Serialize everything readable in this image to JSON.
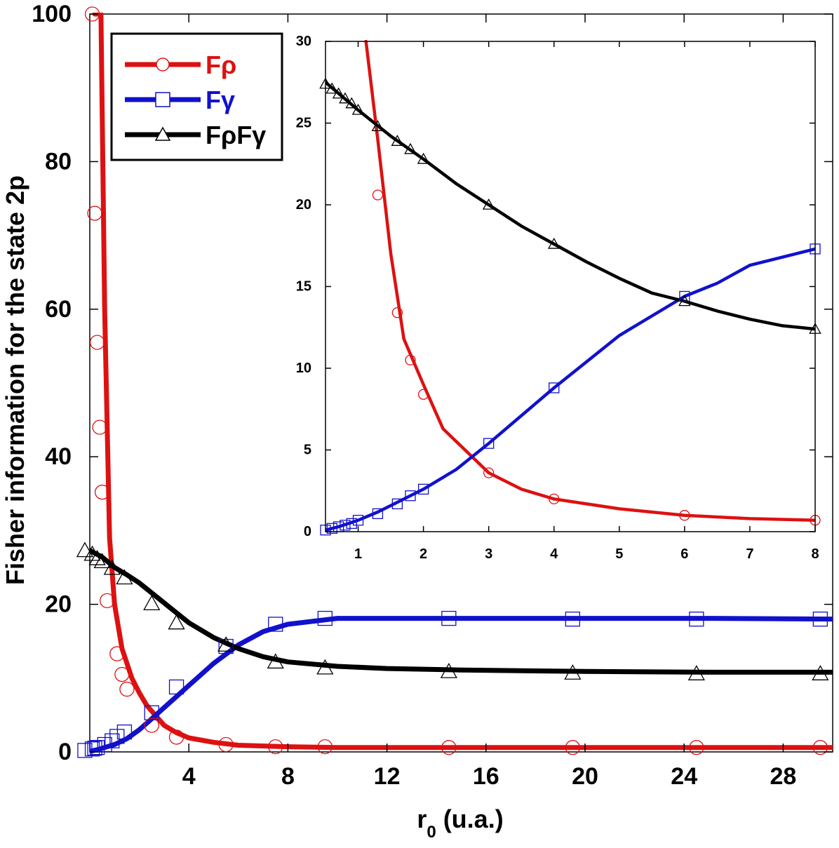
{
  "chart_data": [
    {
      "id": "main",
      "type": "line",
      "xlabel": "r",
      "xlabel_sub": "0",
      "xlabel_units": " (u.a.)",
      "ylabel": "Fisher information for the state 2p",
      "xlim": [
        0,
        30
      ],
      "ylim": [
        0,
        100
      ],
      "xticks": [
        "4",
        "8",
        "12",
        "16",
        "20",
        "24",
        "28"
      ],
      "yticks": [
        "0",
        "20",
        "40",
        "60",
        "80",
        "100"
      ],
      "xtick_values": [
        4,
        8,
        12,
        16,
        20,
        24,
        28
      ],
      "ytick_values": [
        0,
        20,
        40,
        60,
        80,
        100
      ],
      "series": [
        {
          "name": "Fρ",
          "color": "#dd1111",
          "marker": "circle",
          "line": [
            [
              0.2,
              100
            ],
            [
              0.45,
              100
            ],
            [
              0.6,
              60
            ],
            [
              0.8,
              29
            ],
            [
              1.0,
              20
            ],
            [
              1.3,
              14
            ],
            [
              1.7,
              10
            ],
            [
              2.0,
              8
            ],
            [
              2.3,
              6.3
            ],
            [
              3.0,
              3.6
            ],
            [
              3.5,
              2.6
            ],
            [
              4.0,
              1.9
            ],
            [
              5,
              1.3
            ],
            [
              6,
              0.9
            ],
            [
              8,
              0.7
            ],
            [
              10,
              0.6
            ],
            [
              15,
              0.6
            ],
            [
              20,
              0.6
            ],
            [
              25,
              0.6
            ],
            [
              30,
              0.6
            ]
          ],
          "markers": [
            [
              0.1,
              100
            ],
            [
              0.2,
              73
            ],
            [
              0.3,
              55.5
            ],
            [
              0.4,
              44
            ],
            [
              0.5,
              35.2
            ],
            [
              0.7,
              20.5
            ],
            [
              1.1,
              13.3
            ],
            [
              1.3,
              10.5
            ],
            [
              1.5,
              8.5
            ],
            [
              2.5,
              3.6
            ],
            [
              3.5,
              2.0
            ],
            [
              5.5,
              1.0
            ],
            [
              7.5,
              0.7
            ],
            [
              9.5,
              0.7
            ],
            [
              14.5,
              0.6
            ],
            [
              19.5,
              0.6
            ],
            [
              24.5,
              0.6
            ],
            [
              29.5,
              0.6
            ]
          ]
        },
        {
          "name": "Fγ",
          "color": "#1111cc",
          "marker": "square",
          "line": [
            [
              -0.1,
              0.0
            ],
            [
              0.3,
              0.3
            ],
            [
              0.6,
              0.6
            ],
            [
              1.0,
              1.0
            ],
            [
              1.5,
              1.8
            ],
            [
              2.0,
              3.0
            ],
            [
              2.5,
              4.5
            ],
            [
              3.0,
              6.0
            ],
            [
              4.0,
              9.0
            ],
            [
              5.0,
              12.0
            ],
            [
              6.0,
              14.5
            ],
            [
              7.0,
              16.3
            ],
            [
              8.0,
              17.3
            ],
            [
              10.0,
              18.1
            ],
            [
              15.0,
              18.1
            ],
            [
              20.0,
              18.1
            ],
            [
              25.0,
              18.1
            ],
            [
              30.0,
              18.0
            ]
          ],
          "markers": [
            [
              -0.2,
              0.2
            ],
            [
              0.1,
              0.4
            ],
            [
              0.2,
              0.5
            ],
            [
              0.3,
              0.6
            ],
            [
              0.6,
              1.0
            ],
            [
              0.9,
              1.5
            ],
            [
              1.1,
              2.1
            ],
            [
              1.4,
              2.7
            ],
            [
              2.5,
              5.3
            ],
            [
              3.5,
              8.8
            ],
            [
              5.5,
              14.3
            ],
            [
              7.5,
              17.3
            ],
            [
              9.5,
              18.1
            ],
            [
              14.5,
              18.1
            ],
            [
              19.5,
              18.0
            ],
            [
              24.5,
              18.0
            ],
            [
              29.5,
              18.0
            ]
          ]
        },
        {
          "name": "FρFγ",
          "color": "#000000",
          "marker": "triangle",
          "line": [
            [
              0.0,
              27.3
            ],
            [
              0.5,
              26.4
            ],
            [
              1.0,
              25.0
            ],
            [
              1.5,
              24.0
            ],
            [
              2.0,
              22.9
            ],
            [
              3.0,
              20.2
            ],
            [
              4.0,
              17.5
            ],
            [
              5.0,
              15.5
            ],
            [
              6.0,
              14.0
            ],
            [
              7.0,
              12.9
            ],
            [
              8.0,
              12.2
            ],
            [
              10.0,
              11.6
            ],
            [
              12.0,
              11.3
            ],
            [
              15.0,
              11.1
            ],
            [
              20.0,
              10.9
            ],
            [
              25.0,
              10.8
            ],
            [
              30.0,
              10.8
            ]
          ],
          "markers": [
            [
              -0.2,
              27.3
            ],
            [
              0.1,
              26.8
            ],
            [
              0.3,
              26.2
            ],
            [
              0.5,
              25.8
            ],
            [
              0.9,
              24.9
            ],
            [
              1.4,
              23.6
            ],
            [
              2.5,
              20.1
            ],
            [
              3.5,
              17.5
            ],
            [
              5.5,
              14.5
            ],
            [
              7.5,
              12.2
            ],
            [
              9.5,
              11.4
            ],
            [
              14.5,
              10.9
            ],
            [
              19.5,
              10.7
            ],
            [
              24.5,
              10.6
            ],
            [
              29.5,
              10.6
            ]
          ]
        }
      ],
      "legend": {
        "position": "top-left",
        "entries": [
          "Fρ",
          "Fγ",
          "FρFγ"
        ]
      }
    },
    {
      "id": "inset",
      "type": "line",
      "position": "top-right",
      "xlim": [
        0.5,
        8
      ],
      "ylim": [
        0,
        30
      ],
      "xticks": [
        "1",
        "2",
        "3",
        "4",
        "5",
        "6",
        "7",
        "8"
      ],
      "yticks": [
        "0",
        "5",
        "10",
        "15",
        "20",
        "25",
        "30"
      ],
      "xtick_values": [
        1,
        2,
        3,
        4,
        5,
        6,
        7,
        8
      ],
      "ytick_values": [
        0,
        5,
        10,
        15,
        20,
        25,
        30
      ],
      "series": [
        {
          "name": "Fρ",
          "color": "#dd1111",
          "marker": "circle",
          "line": [
            [
              1.12,
              30
            ],
            [
              1.15,
              29
            ],
            [
              1.3,
              24
            ],
            [
              1.5,
              17
            ],
            [
              1.7,
              11.8
            ],
            [
              2.0,
              9.0
            ],
            [
              2.3,
              6.3
            ],
            [
              3.0,
              3.6
            ],
            [
              3.5,
              2.6
            ],
            [
              4.0,
              2.0
            ],
            [
              5.0,
              1.4
            ],
            [
              6.0,
              1.0
            ],
            [
              7.0,
              0.8
            ],
            [
              8.0,
              0.7
            ]
          ],
          "markers": [
            [
              1.3,
              20.6
            ],
            [
              1.6,
              13.4
            ],
            [
              1.8,
              10.5
            ],
            [
              2.0,
              8.4
            ],
            [
              3.0,
              3.6
            ],
            [
              4.0,
              2.0
            ],
            [
              6.0,
              1.0
            ],
            [
              8.0,
              0.7
            ]
          ]
        },
        {
          "name": "Fγ",
          "color": "#1111cc",
          "marker": "square",
          "line": [
            [
              0.5,
              0.1
            ],
            [
              0.7,
              0.3
            ],
            [
              1.0,
              0.7
            ],
            [
              1.3,
              1.2
            ],
            [
              1.6,
              1.8
            ],
            [
              2.0,
              2.6
            ],
            [
              2.5,
              3.8
            ],
            [
              3.0,
              5.4
            ],
            [
              4.0,
              8.8
            ],
            [
              5.0,
              12.0
            ],
            [
              6.0,
              14.4
            ],
            [
              6.5,
              15.2
            ],
            [
              7.0,
              16.3
            ],
            [
              7.5,
              16.8
            ],
            [
              8.0,
              17.3
            ]
          ],
          "markers": [
            [
              0.5,
              0.1
            ],
            [
              0.6,
              0.2
            ],
            [
              0.7,
              0.3
            ],
            [
              0.8,
              0.4
            ],
            [
              0.9,
              0.5
            ],
            [
              1.0,
              0.7
            ],
            [
              1.3,
              1.1
            ],
            [
              1.6,
              1.7
            ],
            [
              1.8,
              2.2
            ],
            [
              2.0,
              2.6
            ],
            [
              3.0,
              5.4
            ],
            [
              4.0,
              8.8
            ],
            [
              6.0,
              14.4
            ],
            [
              8.0,
              17.3
            ]
          ]
        },
        {
          "name": "FρFγ",
          "color": "#000000",
          "marker": "triangle",
          "line": [
            [
              0.5,
              27.5
            ],
            [
              1.0,
              25.8
            ],
            [
              1.5,
              24.2
            ],
            [
              2.0,
              22.8
            ],
            [
              2.5,
              21.3
            ],
            [
              3.0,
              20.0
            ],
            [
              3.5,
              18.7
            ],
            [
              4.0,
              17.6
            ],
            [
              4.5,
              16.5
            ],
            [
              5.0,
              15.5
            ],
            [
              5.5,
              14.6
            ],
            [
              6.0,
              14.1
            ],
            [
              6.5,
              13.5
            ],
            [
              7.0,
              13.0
            ],
            [
              7.5,
              12.6
            ],
            [
              8.0,
              12.4
            ]
          ],
          "markers": [
            [
              0.5,
              27.4
            ],
            [
              0.6,
              27.1
            ],
            [
              0.7,
              26.8
            ],
            [
              0.8,
              26.5
            ],
            [
              0.9,
              26.2
            ],
            [
              1.0,
              25.8
            ],
            [
              1.3,
              24.8
            ],
            [
              1.6,
              23.9
            ],
            [
              1.8,
              23.4
            ],
            [
              2.0,
              22.8
            ],
            [
              3.0,
              20.0
            ],
            [
              4.0,
              17.6
            ],
            [
              6.0,
              14.1
            ],
            [
              8.0,
              12.4
            ]
          ]
        }
      ]
    }
  ]
}
